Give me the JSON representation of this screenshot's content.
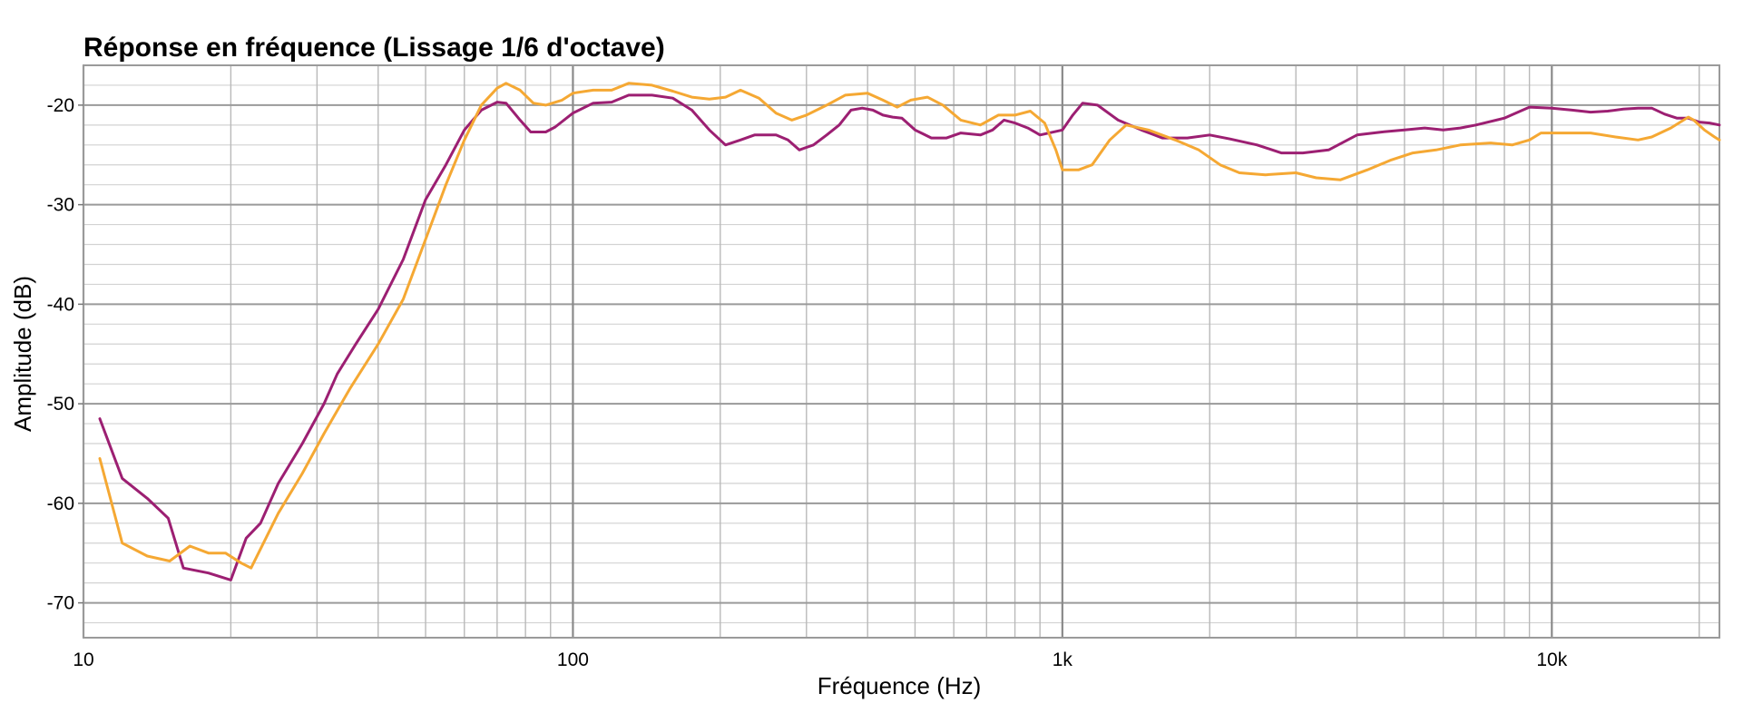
{
  "chart_data": {
    "type": "line",
    "title": "Réponse en fréquence (Lissage 1/6 d'octave)",
    "xlabel": "Fréquence (Hz)",
    "ylabel": "Amplitude (dB)",
    "x_scale": "log",
    "xlim": [
      10,
      22000
    ],
    "ylim": [
      -73.5,
      -16
    ],
    "x_ticks": [
      {
        "value": 10,
        "label": "10"
      },
      {
        "value": 100,
        "label": "100"
      },
      {
        "value": 1000,
        "label": "1k"
      },
      {
        "value": 10000,
        "label": "10k"
      }
    ],
    "y_ticks": [
      {
        "value": -20,
        "label": "-20"
      },
      {
        "value": -30,
        "label": "-30"
      },
      {
        "value": -40,
        "label": "-40"
      },
      {
        "value": -50,
        "label": "-50"
      },
      {
        "value": -60,
        "label": "-60"
      },
      {
        "value": -70,
        "label": "-70"
      }
    ],
    "grid": true,
    "series": [
      {
        "color": "#9c1f72",
        "points": [
          [
            10.8,
            -51.5
          ],
          [
            12,
            -57.5
          ],
          [
            13.5,
            -59.5
          ],
          [
            14.9,
            -61.5
          ],
          [
            16,
            -66.5
          ],
          [
            18,
            -67
          ],
          [
            20,
            -67.7
          ],
          [
            21.5,
            -63.5
          ],
          [
            23,
            -62
          ],
          [
            25,
            -58
          ],
          [
            28,
            -54
          ],
          [
            31,
            -50
          ],
          [
            33,
            -47
          ],
          [
            36,
            -44
          ],
          [
            40,
            -40.5
          ],
          [
            45,
            -35.5
          ],
          [
            50,
            -29.5
          ],
          [
            55,
            -26
          ],
          [
            60,
            -22.5
          ],
          [
            65,
            -20.5
          ],
          [
            70,
            -19.7
          ],
          [
            73,
            -19.8
          ],
          [
            78,
            -21.5
          ],
          [
            82,
            -22.7
          ],
          [
            88,
            -22.7
          ],
          [
            92,
            -22.2
          ],
          [
            100,
            -20.8
          ],
          [
            110,
            -19.8
          ],
          [
            120,
            -19.7
          ],
          [
            130,
            -19
          ],
          [
            145,
            -19
          ],
          [
            160,
            -19.3
          ],
          [
            175,
            -20.5
          ],
          [
            190,
            -22.5
          ],
          [
            205,
            -24
          ],
          [
            220,
            -23.5
          ],
          [
            235,
            -23
          ],
          [
            260,
            -23
          ],
          [
            275,
            -23.5
          ],
          [
            290,
            -24.5
          ],
          [
            310,
            -24
          ],
          [
            330,
            -23
          ],
          [
            350,
            -22
          ],
          [
            370,
            -20.5
          ],
          [
            390,
            -20.3
          ],
          [
            410,
            -20.5
          ],
          [
            430,
            -21
          ],
          [
            450,
            -21.2
          ],
          [
            470,
            -21.3
          ],
          [
            500,
            -22.5
          ],
          [
            540,
            -23.3
          ],
          [
            580,
            -23.3
          ],
          [
            620,
            -22.8
          ],
          [
            680,
            -23
          ],
          [
            720,
            -22.5
          ],
          [
            760,
            -21.5
          ],
          [
            800,
            -21.8
          ],
          [
            850,
            -22.3
          ],
          [
            900,
            -23
          ],
          [
            1000,
            -22.5
          ],
          [
            1050,
            -21
          ],
          [
            1100,
            -19.8
          ],
          [
            1180,
            -20
          ],
          [
            1300,
            -21.5
          ],
          [
            1450,
            -22.5
          ],
          [
            1600,
            -23.3
          ],
          [
            1800,
            -23.3
          ],
          [
            2000,
            -23
          ],
          [
            2200,
            -23.4
          ],
          [
            2500,
            -24
          ],
          [
            2800,
            -24.8
          ],
          [
            3100,
            -24.8
          ],
          [
            3500,
            -24.5
          ],
          [
            4000,
            -23
          ],
          [
            4500,
            -22.7
          ],
          [
            5000,
            -22.5
          ],
          [
            5500,
            -22.3
          ],
          [
            6000,
            -22.5
          ],
          [
            6500,
            -22.3
          ],
          [
            7000,
            -22
          ],
          [
            8000,
            -21.3
          ],
          [
            9000,
            -20.2
          ],
          [
            10000,
            -20.3
          ],
          [
            11000,
            -20.5
          ],
          [
            12000,
            -20.7
          ],
          [
            13000,
            -20.6
          ],
          [
            14000,
            -20.4
          ],
          [
            15000,
            -20.3
          ],
          [
            16000,
            -20.3
          ],
          [
            17000,
            -20.9
          ],
          [
            18000,
            -21.3
          ],
          [
            19000,
            -21.3
          ],
          [
            20000,
            -21.7
          ],
          [
            21000,
            -21.8
          ],
          [
            22000,
            -22
          ]
        ]
      },
      {
        "color": "#f5a833",
        "points": [
          [
            10.8,
            -55.5
          ],
          [
            12,
            -64
          ],
          [
            13.5,
            -65.3
          ],
          [
            15,
            -65.8
          ],
          [
            16.5,
            -64.3
          ],
          [
            18,
            -65
          ],
          [
            19.5,
            -65
          ],
          [
            21,
            -66
          ],
          [
            22,
            -66.5
          ],
          [
            25,
            -61
          ],
          [
            28,
            -57
          ],
          [
            31,
            -53
          ],
          [
            35,
            -48.5
          ],
          [
            40,
            -44
          ],
          [
            45,
            -39.5
          ],
          [
            50,
            -33.5
          ],
          [
            55,
            -28
          ],
          [
            60,
            -23.5
          ],
          [
            65,
            -20
          ],
          [
            70,
            -18.3
          ],
          [
            73,
            -17.8
          ],
          [
            78,
            -18.5
          ],
          [
            83,
            -19.8
          ],
          [
            88,
            -20
          ],
          [
            95,
            -19.5
          ],
          [
            100,
            -18.8
          ],
          [
            110,
            -18.5
          ],
          [
            120,
            -18.5
          ],
          [
            130,
            -17.8
          ],
          [
            145,
            -18
          ],
          [
            160,
            -18.6
          ],
          [
            175,
            -19.2
          ],
          [
            190,
            -19.4
          ],
          [
            205,
            -19.2
          ],
          [
            220,
            -18.5
          ],
          [
            240,
            -19.3
          ],
          [
            260,
            -20.8
          ],
          [
            280,
            -21.5
          ],
          [
            300,
            -21
          ],
          [
            330,
            -20
          ],
          [
            360,
            -19
          ],
          [
            400,
            -18.8
          ],
          [
            430,
            -19.5
          ],
          [
            460,
            -20.2
          ],
          [
            490,
            -19.5
          ],
          [
            530,
            -19.2
          ],
          [
            570,
            -20
          ],
          [
            620,
            -21.5
          ],
          [
            680,
            -22
          ],
          [
            740,
            -21
          ],
          [
            800,
            -21
          ],
          [
            860,
            -20.6
          ],
          [
            920,
            -21.8
          ],
          [
            970,
            -24.5
          ],
          [
            1000,
            -26.5
          ],
          [
            1080,
            -26.5
          ],
          [
            1150,
            -26
          ],
          [
            1250,
            -23.5
          ],
          [
            1350,
            -22
          ],
          [
            1500,
            -22.5
          ],
          [
            1700,
            -23.5
          ],
          [
            1900,
            -24.5
          ],
          [
            2100,
            -26
          ],
          [
            2300,
            -26.8
          ],
          [
            2600,
            -27
          ],
          [
            3000,
            -26.8
          ],
          [
            3300,
            -27.3
          ],
          [
            3700,
            -27.5
          ],
          [
            4200,
            -26.5
          ],
          [
            4700,
            -25.5
          ],
          [
            5200,
            -24.8
          ],
          [
            5800,
            -24.5
          ],
          [
            6500,
            -24
          ],
          [
            7500,
            -23.8
          ],
          [
            8300,
            -24
          ],
          [
            9000,
            -23.5
          ],
          [
            9500,
            -22.8
          ],
          [
            10500,
            -22.8
          ],
          [
            12000,
            -22.8
          ],
          [
            13500,
            -23.2
          ],
          [
            15000,
            -23.5
          ],
          [
            16000,
            -23.2
          ],
          [
            17500,
            -22.3
          ],
          [
            19000,
            -21.2
          ],
          [
            19500,
            -21.5
          ],
          [
            20500,
            -22.5
          ],
          [
            21500,
            -23.2
          ],
          [
            22000,
            -23.5
          ]
        ]
      }
    ]
  }
}
